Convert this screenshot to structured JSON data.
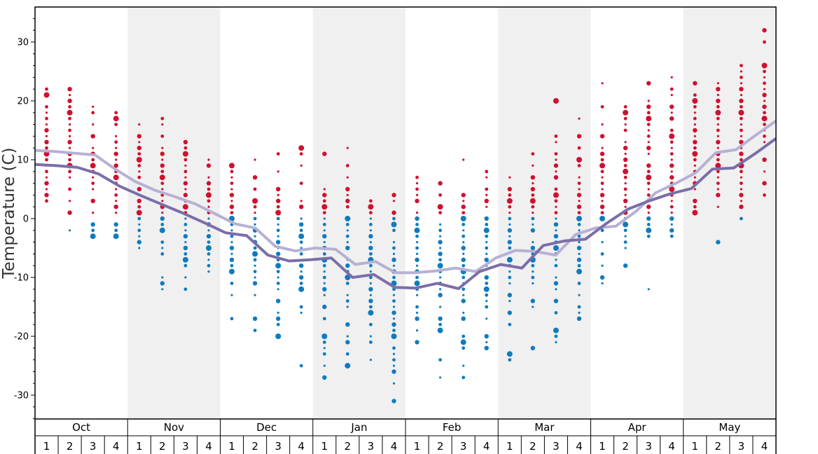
{
  "chart_data": {
    "type": "scatter",
    "title": "",
    "ylabel": "Temperature (C)",
    "ylim": [
      -35,
      36
    ],
    "yticks": [
      30,
      20,
      10,
      0,
      -10,
      -20,
      -30
    ],
    "ytick_labels": [
      "30",
      "20",
      "10",
      "0",
      "-10",
      "-20",
      "-30"
    ],
    "months": [
      "Oct",
      "Nov",
      "Dec",
      "Jan",
      "Feb",
      "Mar",
      "Apr",
      "May"
    ],
    "week_labels": [
      "1",
      "2",
      "3",
      "4"
    ],
    "shaded_months": [
      "Nov",
      "Jan",
      "Mar",
      "May"
    ],
    "grid": false,
    "colors": {
      "warm_dots": "#d0102e",
      "cold_dots": "#0f7bbf",
      "upper_line": "#b7b0d4",
      "lower_line": "#7b6ea8",
      "shade": "#f0f0f0"
    },
    "series": [
      {
        "values": [
          11.6,
          11.4,
          11.1,
          10.8,
          8.4,
          6.3,
          4.8,
          3.7,
          2.5,
          0.8,
          -0.9,
          -1.6,
          -4.7,
          -5.5,
          -5.0,
          -5.2,
          -7.8,
          -7.3,
          -9.2,
          -9.2,
          -8.9,
          -8.4,
          -9.0,
          -6.7,
          -5.4,
          -5.6,
          -6.2,
          -2.7,
          -1.6,
          -1.3,
          1.2,
          4.4,
          6.0,
          7.8,
          11.2,
          11.7,
          14.2,
          16.6
        ]
      },
      {
        "values": [
          9.2,
          9.0,
          8.7,
          7.6,
          5.5,
          3.9,
          2.4,
          0.9,
          -0.7,
          -2.4,
          -2.9,
          -6.2,
          -7.2,
          -7.0,
          -6.7,
          -10.0,
          -9.5,
          -11.7,
          -11.8,
          -11.0,
          -11.9,
          -9.0,
          -7.8,
          -8.4,
          -4.6,
          -3.8,
          -3.5,
          -0.8,
          1.6,
          3.0,
          4.2,
          5.1,
          8.4,
          8.6,
          11.0,
          13.6
        ]
      }
    ],
    "dot_columns": [
      {
        "month": "Oct",
        "week": 1,
        "y": [
          22,
          21,
          19,
          18,
          17,
          16,
          15,
          14,
          13,
          12,
          11,
          10,
          9,
          8,
          7,
          6,
          5,
          4,
          3
        ]
      },
      {
        "month": "Oct",
        "week": 2,
        "y": [
          22,
          21,
          20,
          19,
          18,
          17,
          16,
          15,
          14,
          13,
          12,
          11,
          10,
          9,
          8,
          7,
          5,
          3,
          1,
          -2
        ]
      },
      {
        "month": "Oct",
        "week": 3,
        "y": [
          19,
          18,
          16,
          14,
          12,
          11,
          10,
          9,
          8,
          7,
          6,
          5,
          3,
          1,
          -1,
          -2,
          -3
        ]
      },
      {
        "month": "Oct",
        "week": 4,
        "y": [
          18,
          17,
          16,
          14,
          13,
          12,
          11,
          10,
          9,
          8,
          7,
          6,
          5,
          4,
          3,
          2,
          1,
          -1,
          -2,
          -3
        ]
      },
      {
        "month": "Nov",
        "week": 1,
        "y": [
          16,
          14,
          13,
          12,
          11,
          10,
          9,
          8,
          7,
          6,
          5,
          4,
          3,
          2,
          1,
          0,
          -1,
          -2,
          -3,
          -4,
          -5
        ]
      },
      {
        "month": "Nov",
        "week": 2,
        "y": [
          17,
          16,
          14,
          12,
          11,
          10,
          9,
          8,
          7,
          6,
          5,
          4,
          3,
          2,
          1,
          0,
          -1,
          -2,
          -4,
          -5,
          -6,
          -10,
          -11,
          -12
        ]
      },
      {
        "month": "Nov",
        "week": 3,
        "y": [
          13,
          12,
          11,
          10,
          9,
          8,
          7,
          6,
          5,
          4,
          3,
          2,
          1,
          0,
          -1,
          -2,
          -3,
          -4,
          -5,
          -6,
          -7,
          -8,
          -10,
          -12
        ]
      },
      {
        "month": "Nov",
        "week": 4,
        "y": [
          10,
          9,
          7,
          6,
          5,
          4,
          3,
          2,
          1,
          0,
          -1,
          -2,
          -3,
          -4,
          -5,
          -6,
          -7,
          -8,
          -9
        ]
      },
      {
        "month": "Dec",
        "week": 1,
        "y": [
          9,
          8,
          7,
          6,
          5,
          4,
          3,
          2,
          1,
          0,
          -1,
          -2,
          -3,
          -4,
          -5,
          -6,
          -7,
          -8,
          -9,
          -11,
          -13,
          -17
        ]
      },
      {
        "month": "Dec",
        "week": 2,
        "y": [
          10,
          7,
          5,
          3,
          2,
          1,
          0,
          -1,
          -2,
          -3,
          -4,
          -5,
          -6,
          -7,
          -8,
          -9,
          -10,
          -11,
          -13,
          -17,
          -19
        ]
      },
      {
        "month": "Dec",
        "week": 3,
        "y": [
          11,
          8,
          5,
          4,
          3,
          2,
          1,
          0,
          -1,
          -2,
          -3,
          -4,
          -5,
          -6,
          -7,
          -8,
          -9,
          -10,
          -11,
          -12,
          -14,
          -16,
          -17,
          -18,
          -20
        ]
      },
      {
        "month": "Dec",
        "week": 4,
        "y": [
          12,
          11,
          9,
          6,
          3,
          2,
          0,
          -1,
          -2,
          -3,
          -4,
          -5,
          -6,
          -7,
          -8,
          -9,
          -10,
          -11,
          -12,
          -15,
          -16,
          -25
        ]
      },
      {
        "month": "Jan",
        "week": 1,
        "y": [
          11,
          5,
          4,
          3,
          2,
          1,
          0,
          -1,
          -2,
          -3,
          -4,
          -5,
          -6,
          -7,
          -8,
          -9,
          -10,
          -11,
          -12,
          -13,
          -15,
          -17,
          -20,
          -21,
          -22,
          -23,
          -25,
          -27
        ]
      },
      {
        "month": "Jan",
        "week": 2,
        "y": [
          12,
          9,
          7,
          5,
          4,
          3,
          2,
          0,
          -1,
          -2,
          -3,
          -4,
          -5,
          -7,
          -8,
          -9,
          -10,
          -11,
          -13,
          -14,
          -15,
          -18,
          -20,
          -21,
          -23,
          -25
        ]
      },
      {
        "month": "Jan",
        "week": 3,
        "y": [
          3,
          2,
          1,
          0,
          -1,
          -2,
          -3,
          -4,
          -5,
          -6,
          -7,
          -8,
          -9,
          -10,
          -11,
          -12,
          -13,
          -14,
          -15,
          -16,
          -18,
          -20,
          -21,
          -24
        ]
      },
      {
        "month": "Jan",
        "week": 4,
        "y": [
          4,
          3,
          1,
          0,
          -1,
          -2,
          -4,
          -5,
          -6,
          -7,
          -8,
          -9,
          -10,
          -11,
          -12,
          -13,
          -14,
          -15,
          -16,
          -17,
          -18,
          -19,
          -20,
          -22,
          -23,
          -24,
          -25,
          -26,
          -28,
          -31
        ]
      },
      {
        "month": "Feb",
        "week": 1,
        "y": [
          7,
          6,
          5,
          4,
          3,
          1,
          0,
          -1,
          -2,
          -3,
          -4,
          -5,
          -6,
          -7,
          -8,
          -9,
          -10,
          -11,
          -12,
          -13,
          -15,
          -16,
          -17,
          -19,
          -21
        ]
      },
      {
        "month": "Feb",
        "week": 2,
        "y": [
          6,
          4,
          2,
          1,
          -1,
          -2,
          -3,
          -4,
          -5,
          -6,
          -7,
          -8,
          -9,
          -10,
          -11,
          -12,
          -13,
          -15,
          -17,
          -18,
          -19,
          -24,
          -27
        ]
      },
      {
        "month": "Feb",
        "week": 3,
        "y": [
          10,
          4,
          3,
          2,
          1,
          0,
          -1,
          -2,
          -3,
          -4,
          -5,
          -6,
          -7,
          -8,
          -9,
          -10,
          -11,
          -12,
          -13,
          -14,
          -16,
          -17,
          -20,
          -21,
          -22,
          -25,
          -27
        ]
      },
      {
        "month": "Feb",
        "week": 4,
        "y": [
          8,
          7,
          5,
          4,
          3,
          2,
          0,
          -1,
          -2,
          -3,
          -4,
          -5,
          -6,
          -7,
          -8,
          -10,
          -11,
          -12,
          -13,
          -14,
          -15,
          -17,
          -20,
          -21,
          -22
        ]
      },
      {
        "month": "Mar",
        "week": 1,
        "y": [
          7,
          5,
          4,
          3,
          2,
          1,
          0,
          -1,
          -2,
          -3,
          -4,
          -5,
          -7,
          -8,
          -9,
          -10,
          -11,
          -13,
          -14,
          -16,
          -18,
          -23,
          -24
        ]
      },
      {
        "month": "Mar",
        "week": 2,
        "y": [
          11,
          9,
          7,
          6,
          5,
          4,
          3,
          2,
          1,
          0,
          -1,
          -2,
          -4,
          -5,
          -6,
          -7,
          -8,
          -9,
          -10,
          -11,
          -14,
          -15,
          -22
        ]
      },
      {
        "month": "Mar",
        "week": 3,
        "y": [
          20,
          14,
          13,
          11,
          10,
          9,
          8,
          7,
          5,
          4,
          3,
          2,
          1,
          0,
          -1,
          -2,
          -3,
          -4,
          -5,
          -6,
          -7,
          -8,
          -10,
          -11,
          -12,
          -14,
          -16,
          -19,
          -20,
          -21
        ]
      },
      {
        "month": "Mar",
        "week": 4,
        "y": [
          17,
          14,
          12,
          10,
          9,
          7,
          6,
          5,
          4,
          3,
          2,
          1,
          0,
          -1,
          -2,
          -3,
          -4,
          -5,
          -6,
          -7,
          -8,
          -9,
          -11,
          -13,
          -15,
          -16,
          -17
        ]
      },
      {
        "month": "Apr",
        "week": 1,
        "y": [
          23,
          19,
          16,
          14,
          12,
          11,
          10,
          9,
          8,
          7,
          6,
          5,
          4,
          3,
          2,
          1,
          0,
          -2,
          -4,
          -6,
          -8,
          -10,
          -11
        ]
      },
      {
        "month": "Apr",
        "week": 2,
        "y": [
          19,
          18,
          17,
          16,
          15,
          13,
          12,
          11,
          10,
          9,
          8,
          7,
          6,
          5,
          4,
          3,
          2,
          1,
          0,
          -1,
          -2,
          -3,
          -4,
          -5,
          -8
        ]
      },
      {
        "month": "Apr",
        "week": 3,
        "y": [
          23,
          20,
          19,
          18,
          17,
          16,
          15,
          14,
          13,
          12,
          11,
          9,
          8,
          7,
          6,
          5,
          4,
          3,
          2,
          1,
          0,
          -1,
          -2,
          -3,
          -12
        ]
      },
      {
        "month": "Apr",
        "week": 4,
        "y": [
          24,
          22,
          21,
          19,
          18,
          17,
          15,
          14,
          13,
          12,
          11,
          10,
          9,
          8,
          7,
          6,
          5,
          4,
          3,
          2,
          1,
          0,
          -1,
          -2,
          -3
        ]
      },
      {
        "month": "May",
        "week": 1,
        "y": [
          23,
          21,
          20,
          19,
          18,
          17,
          16,
          15,
          14,
          13,
          12,
          11,
          10,
          9,
          8,
          7,
          6,
          5,
          3,
          2,
          1
        ]
      },
      {
        "month": "May",
        "week": 2,
        "y": [
          23,
          22,
          21,
          20,
          19,
          18,
          17,
          16,
          15,
          14,
          13,
          12,
          11,
          10,
          9,
          8,
          7,
          6,
          5,
          4,
          2,
          -4
        ]
      },
      {
        "month": "May",
        "week": 3,
        "y": [
          26,
          25,
          24,
          23,
          22,
          21,
          20,
          19,
          18,
          17,
          16,
          15,
          14,
          13,
          12,
          11,
          10,
          9,
          8,
          7,
          6,
          5,
          4,
          3,
          2,
          0
        ]
      },
      {
        "month": "May",
        "week": 4,
        "y": [
          32,
          30,
          26,
          25,
          24,
          23,
          22,
          21,
          20,
          19,
          18,
          17,
          16,
          15,
          14,
          13,
          10,
          8,
          6,
          4
        ]
      }
    ]
  }
}
